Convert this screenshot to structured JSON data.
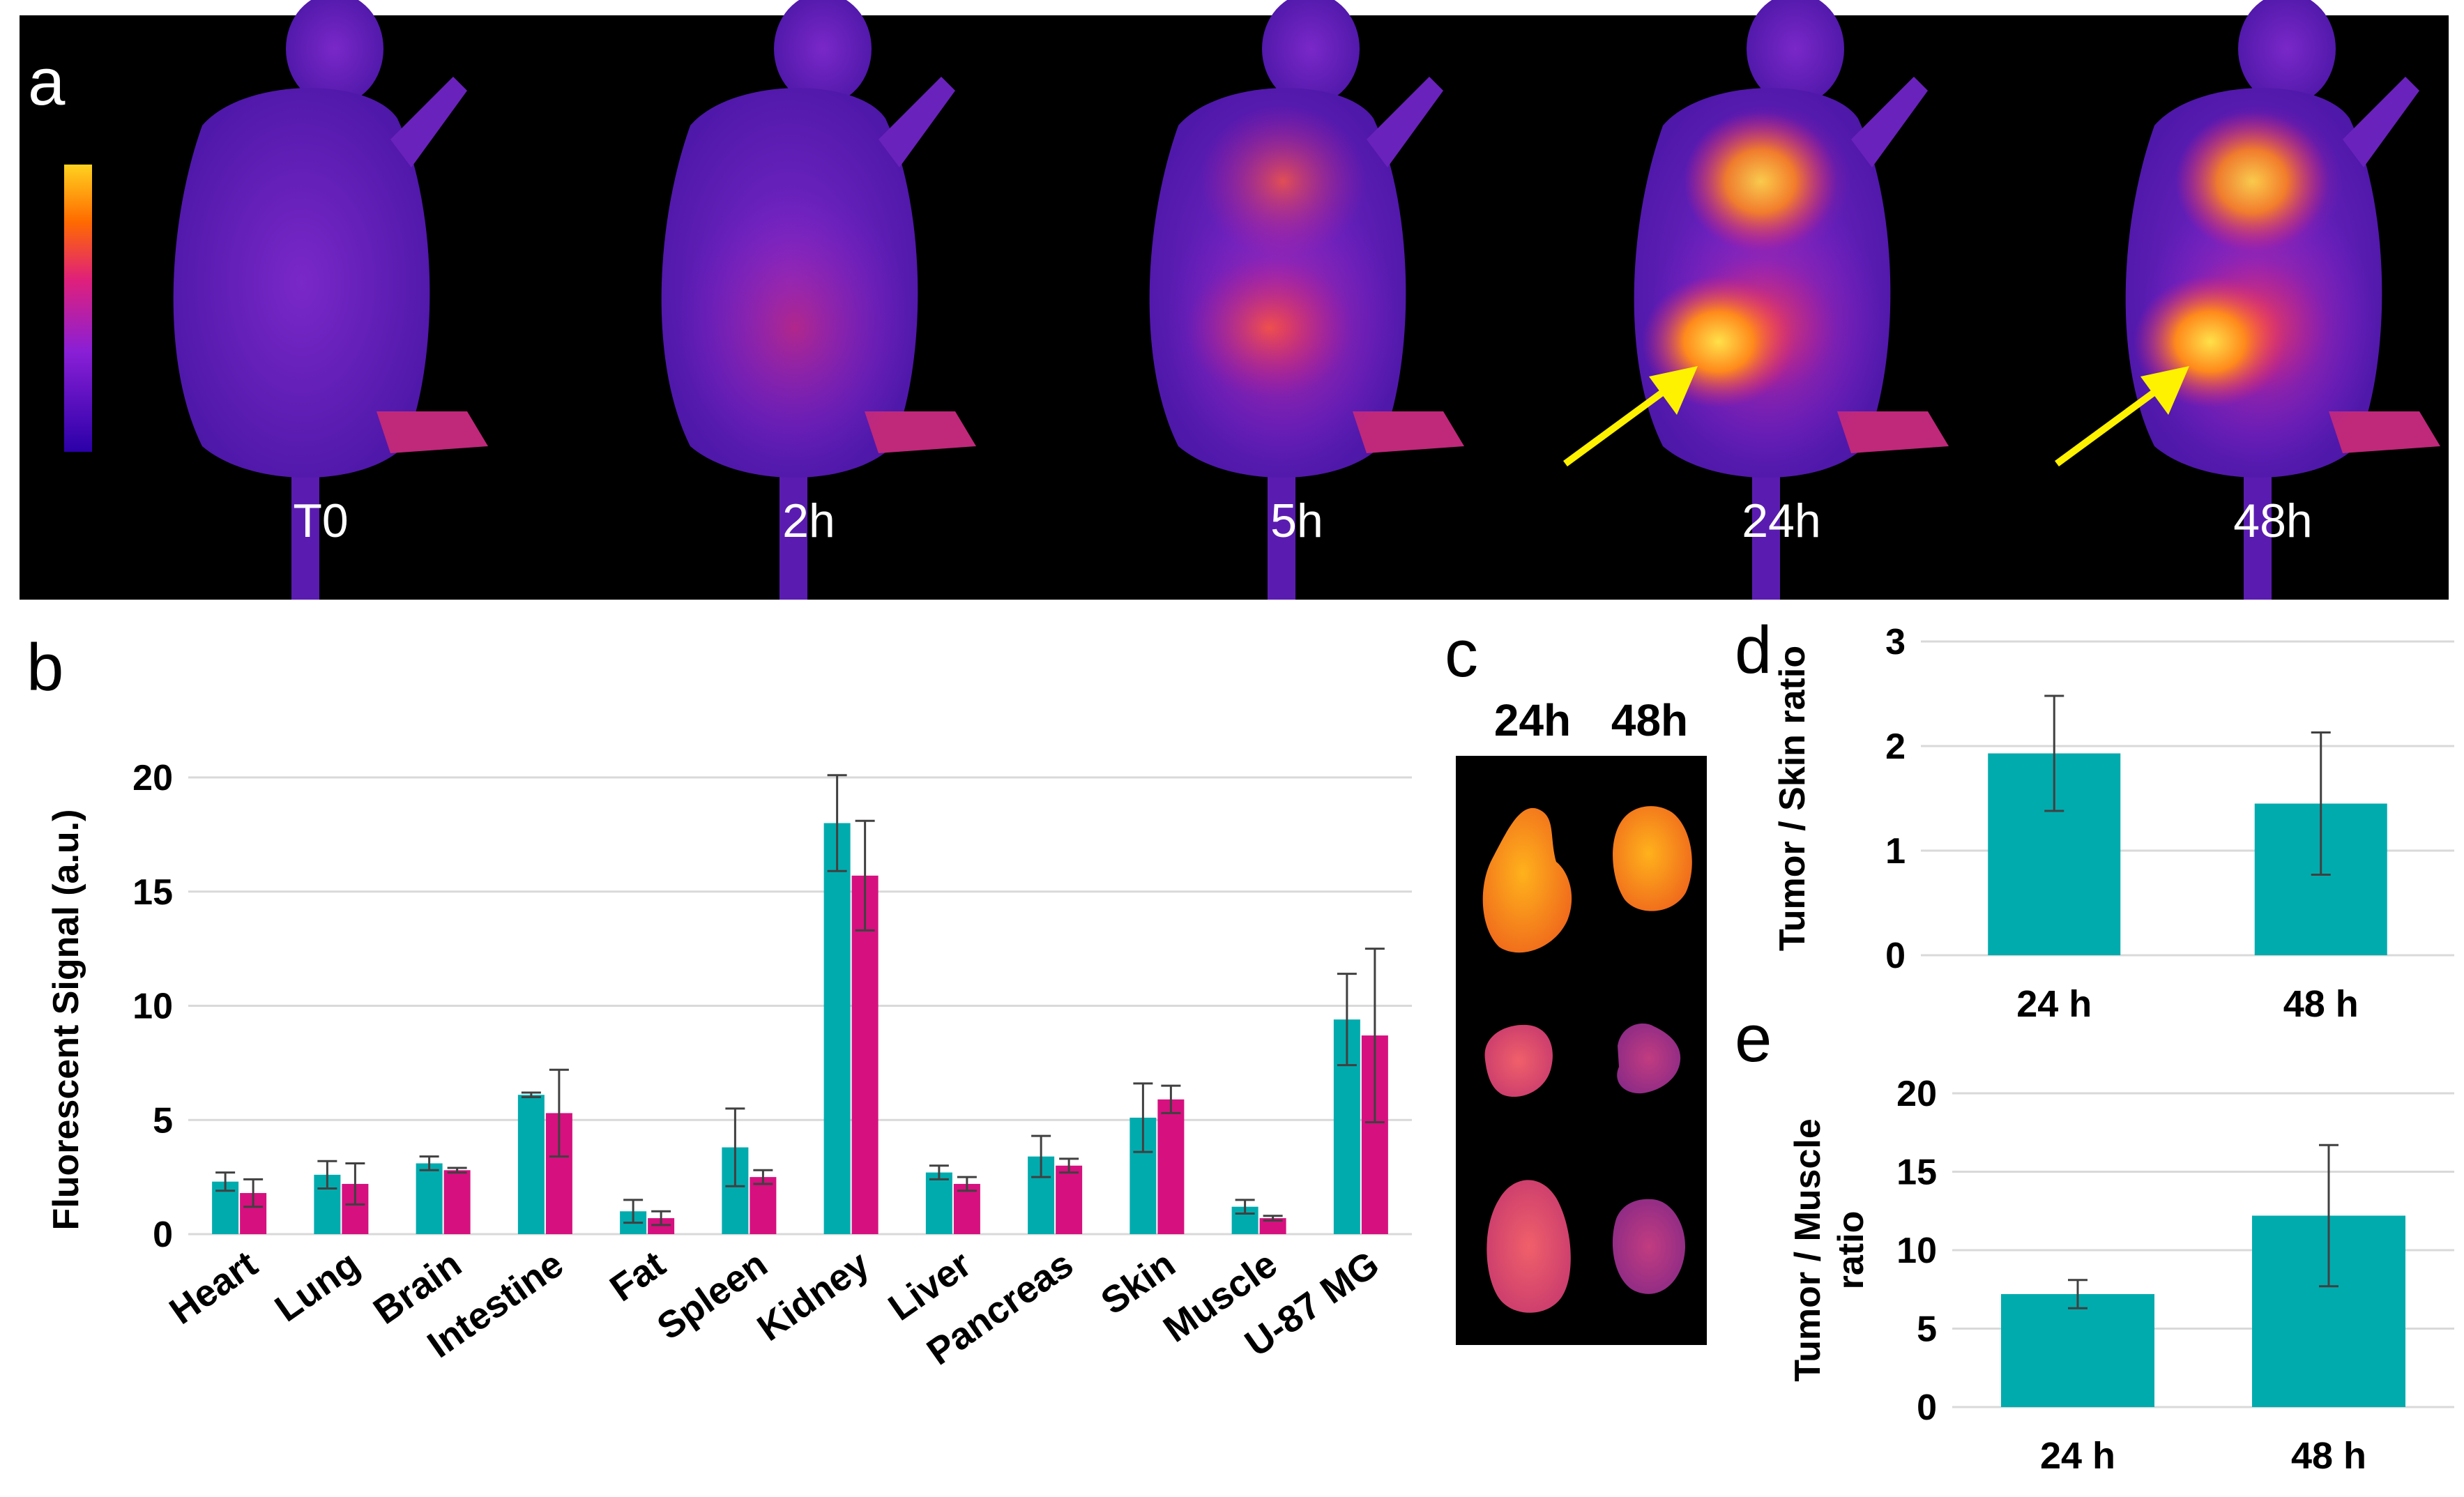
{
  "panel_a": {
    "letter": "a",
    "timepoints": [
      "T0",
      "2h",
      "5h",
      "24h",
      "48h"
    ],
    "arrow_color": "#FFF200",
    "colormap": [
      "#2b00a8",
      "#8a1fd6",
      "#e0207a",
      "#ff6a00",
      "#ffd21f"
    ]
  },
  "panel_c": {
    "letter": "c",
    "headers": [
      "24h",
      "48h"
    ]
  },
  "colors": {
    "teal": "#00ABAE",
    "magenta": "#D6107F",
    "errorbar": "#404040",
    "gridline": "#D9D9D9"
  },
  "chart_data": [
    {
      "panel": "b",
      "type": "bar",
      "ylabel": "Fluorescent Signal (a.u.)",
      "ylim": [
        0,
        20
      ],
      "yticks": [
        0,
        5,
        10,
        15,
        20
      ],
      "categories": [
        "Heart",
        "Lung",
        "Brain",
        "Intestine",
        "Fat",
        "Spleen",
        "Kidney",
        "Liver",
        "Pancreas",
        "Skin",
        "Muscle",
        "U-87 MG"
      ],
      "series": [
        {
          "color": "#00ABAE",
          "values": [
            2.3,
            2.6,
            3.1,
            6.1,
            1.0,
            3.8,
            18.0,
            2.7,
            3.4,
            5.1,
            1.2,
            9.4
          ],
          "errors": [
            0.4,
            0.6,
            0.3,
            0.1,
            0.5,
            1.7,
            2.1,
            0.3,
            0.9,
            1.5,
            0.3,
            2.0
          ]
        },
        {
          "color": "#D6107F",
          "values": [
            1.8,
            2.2,
            2.8,
            5.3,
            0.7,
            2.5,
            15.7,
            2.2,
            3.0,
            5.9,
            0.7,
            8.7
          ],
          "errors": [
            0.6,
            0.9,
            0.1,
            1.9,
            0.3,
            0.3,
            2.4,
            0.3,
            0.3,
            0.6,
            0.1,
            3.8
          ]
        }
      ],
      "grid": true
    },
    {
      "panel": "d",
      "type": "bar",
      "ylabel": "Tumor / Skin ratio",
      "ylim": [
        0,
        3
      ],
      "yticks": [
        0,
        1,
        2,
        3
      ],
      "categories": [
        "24 h",
        "48 h"
      ],
      "values": [
        1.93,
        1.45
      ],
      "errors": [
        0.55,
        0.68
      ],
      "color": "#00ABAE",
      "grid": true
    },
    {
      "panel": "e",
      "type": "bar",
      "ylabel": [
        "Tumor / Muscle",
        "ratio"
      ],
      "ylim": [
        0,
        20
      ],
      "yticks": [
        0,
        5,
        10,
        15,
        20
      ],
      "categories": [
        "24 h",
        "48 h"
      ],
      "values": [
        7.2,
        12.2
      ],
      "errors": [
        0.9,
        4.5
      ],
      "color": "#00ABAE",
      "grid": true
    }
  ]
}
